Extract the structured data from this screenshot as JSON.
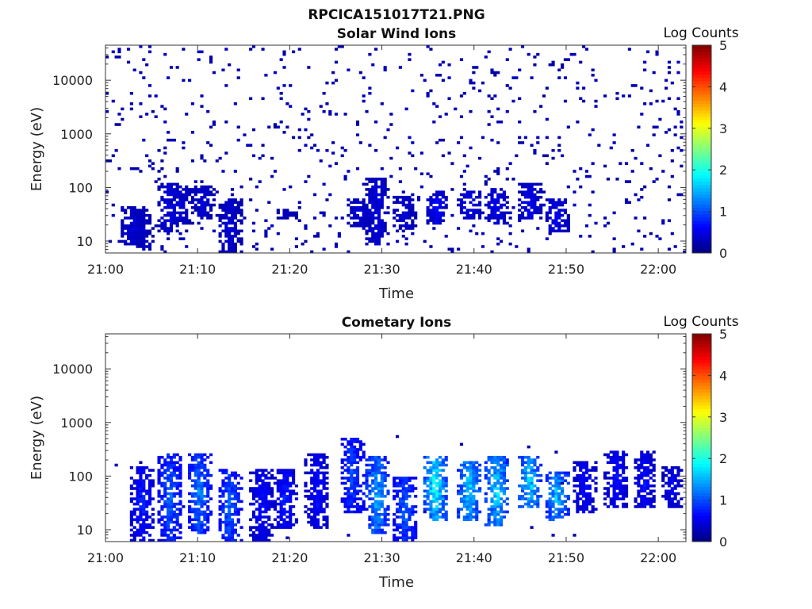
{
  "figure_title": "RPCICA151017T21.PNG",
  "chart_data": [
    {
      "type": "heatmap",
      "title": "Solar Wind Ions",
      "xlabel": "Time",
      "ylabel": "Energy (eV)",
      "y_scale": "log",
      "ylim_eV": [
        6,
        45000
      ],
      "xlim_minutes_after_21:00": [
        0,
        63
      ],
      "x_ticks": [
        "21:00",
        "21:10",
        "21:20",
        "21:30",
        "21:40",
        "21:50",
        "22:00"
      ],
      "y_ticks": [
        "10",
        "100",
        "1000",
        "10000"
      ],
      "colorbar": {
        "label": "Log Counts",
        "min": 0,
        "max": 5,
        "ticks": [
          "0",
          "1",
          "2",
          "3",
          "4",
          "5"
        ]
      },
      "clusters": [
        {
          "t": 3.0,
          "e_low": 8,
          "e_high": 45,
          "level": 0.4
        },
        {
          "t": 4.0,
          "e_low": 7,
          "e_high": 40,
          "level": 0.35
        },
        {
          "t": 7.0,
          "e_low": 15,
          "e_high": 120,
          "level": 0.45
        },
        {
          "t": 8.2,
          "e_low": 20,
          "e_high": 110,
          "level": 0.4
        },
        {
          "t": 10.5,
          "e_low": 25,
          "e_high": 110,
          "level": 0.4
        },
        {
          "t": 13.5,
          "e_low": 6,
          "e_high": 60,
          "level": 0.4
        },
        {
          "t": 19.5,
          "e_low": 25,
          "e_high": 40,
          "level": 0.3
        },
        {
          "t": 27.5,
          "e_low": 18,
          "e_high": 60,
          "level": 0.4
        },
        {
          "t": 29.5,
          "e_low": 8,
          "e_high": 150,
          "level": 0.45
        },
        {
          "t": 32.5,
          "e_low": 15,
          "e_high": 70,
          "level": 0.4
        },
        {
          "t": 36.0,
          "e_low": 20,
          "e_high": 90,
          "level": 0.55
        },
        {
          "t": 39.5,
          "e_low": 25,
          "e_high": 90,
          "level": 0.5
        },
        {
          "t": 42.5,
          "e_low": 20,
          "e_high": 100,
          "level": 0.5
        },
        {
          "t": 46.0,
          "e_low": 25,
          "e_high": 120,
          "level": 0.5
        },
        {
          "t": 49.0,
          "e_low": 15,
          "e_high": 60,
          "level": 0.5
        }
      ]
    },
    {
      "type": "heatmap",
      "title": "Cometary Ions",
      "xlabel": "Time",
      "ylabel": "Energy (eV)",
      "y_scale": "log",
      "ylim_eV": [
        6,
        45000
      ],
      "xlim_minutes_after_21:00": [
        0,
        63
      ],
      "x_ticks": [
        "21:00",
        "21:10",
        "21:20",
        "21:30",
        "21:40",
        "21:50",
        "22:00"
      ],
      "y_ticks": [
        "10",
        "100",
        "1000",
        "10000"
      ],
      "colorbar": {
        "label": "Log Counts",
        "min": 0,
        "max": 5,
        "ticks": [
          "0",
          "1",
          "2",
          "3",
          "4",
          "5"
        ]
      },
      "clusters": [
        {
          "t": 4.0,
          "e_low": 6,
          "e_high": 150,
          "level": 0.7
        },
        {
          "t": 7.0,
          "e_low": 6,
          "e_high": 280,
          "level": 1.0
        },
        {
          "t": 10.2,
          "e_low": 8,
          "e_high": 260,
          "level": 1.1
        },
        {
          "t": 13.5,
          "e_low": 6,
          "e_high": 140,
          "level": 1.0
        },
        {
          "t": 17.0,
          "e_low": 6,
          "e_high": 140,
          "level": 0.6
        },
        {
          "t": 19.5,
          "e_low": 10,
          "e_high": 140,
          "level": 0.7
        },
        {
          "t": 23.0,
          "e_low": 10,
          "e_high": 280,
          "level": 0.6
        },
        {
          "t": 26.8,
          "e_low": 20,
          "e_high": 500,
          "level": 0.9
        },
        {
          "t": 29.5,
          "e_low": 8,
          "e_high": 250,
          "level": 1.3
        },
        {
          "t": 32.5,
          "e_low": 6,
          "e_high": 100,
          "level": 1.0
        },
        {
          "t": 35.8,
          "e_low": 15,
          "e_high": 250,
          "level": 1.7
        },
        {
          "t": 39.5,
          "e_low": 15,
          "e_high": 200,
          "level": 1.5
        },
        {
          "t": 42.5,
          "e_low": 12,
          "e_high": 250,
          "level": 1.5
        },
        {
          "t": 46.0,
          "e_low": 25,
          "e_high": 250,
          "level": 1.5
        },
        {
          "t": 49.0,
          "e_low": 15,
          "e_high": 120,
          "level": 1.4
        },
        {
          "t": 52.0,
          "e_low": 20,
          "e_high": 200,
          "level": 0.6
        },
        {
          "t": 55.5,
          "e_low": 25,
          "e_high": 300,
          "level": 0.6
        },
        {
          "t": 58.5,
          "e_low": 25,
          "e_high": 300,
          "level": 0.6
        },
        {
          "t": 61.5,
          "e_low": 25,
          "e_high": 150,
          "level": 0.5
        }
      ]
    }
  ]
}
